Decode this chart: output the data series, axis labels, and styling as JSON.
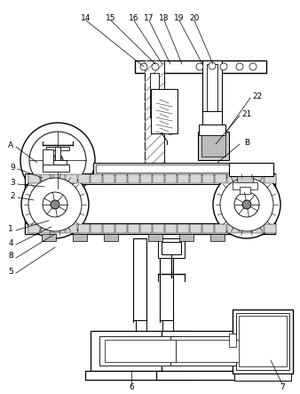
{
  "bg_color": "#ffffff",
  "lc": "#000000",
  "gray1": "#cccccc",
  "gray2": "#aaaaaa",
  "gray3": "#888888",
  "top_labels": [
    [
      "14",
      97,
      20,
      162,
      75
    ],
    [
      "15",
      125,
      20,
      175,
      72
    ],
    [
      "16",
      151,
      20,
      183,
      72
    ],
    [
      "17",
      168,
      20,
      192,
      72
    ],
    [
      "18",
      185,
      20,
      205,
      72
    ],
    [
      "19",
      202,
      20,
      228,
      72
    ],
    [
      "20",
      219,
      20,
      240,
      72
    ]
  ],
  "right_labels": [
    [
      "22",
      290,
      108,
      255,
      148
    ],
    [
      "21",
      278,
      128,
      243,
      162
    ],
    [
      "B",
      278,
      160,
      245,
      183
    ]
  ],
  "left_labels": [
    [
      "A",
      12,
      163,
      42,
      183
    ],
    [
      "9",
      14,
      188,
      48,
      200
    ],
    [
      "3",
      14,
      205,
      50,
      210
    ],
    [
      "2",
      14,
      220,
      38,
      225
    ]
  ],
  "lower_left_labels": [
    [
      "1",
      12,
      257,
      55,
      248
    ],
    [
      "4",
      12,
      273,
      58,
      255
    ],
    [
      "8",
      12,
      288,
      62,
      263
    ],
    [
      "5",
      12,
      305,
      62,
      278
    ]
  ],
  "bottom_labels": [
    [
      "6",
      148,
      435,
      148,
      418
    ],
    [
      "7",
      318,
      435,
      305,
      405
    ]
  ]
}
